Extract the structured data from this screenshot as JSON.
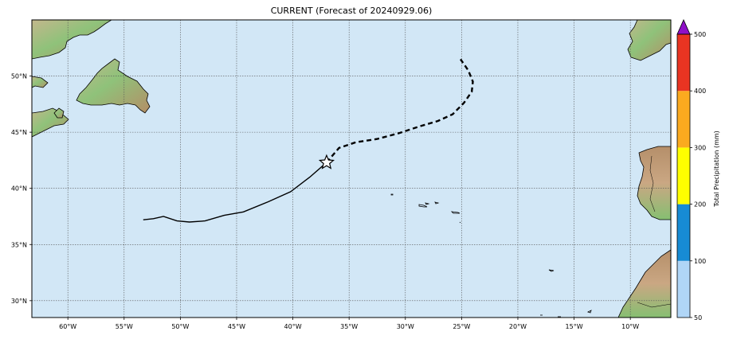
{
  "title": "CURRENT (Forecast of 20240929.06)",
  "map": {
    "lon_range": [
      -63.2,
      -6.4
    ],
    "lat_range": [
      28.5,
      55.0
    ],
    "ocean_color": "#d2e7f6",
    "grid_lon": [
      -60,
      -55,
      -50,
      -45,
      -40,
      -35,
      -30,
      -25,
      -20,
      -15,
      -10
    ],
    "grid_lat": [
      30,
      35,
      40,
      45,
      50
    ],
    "lon_labels": [
      "60°W",
      "55°W",
      "50°W",
      "45°W",
      "40°W",
      "35°W",
      "30°W",
      "25°W",
      "20°W",
      "15°W",
      "10°W"
    ],
    "lat_labels": [
      "30°N",
      "35°N",
      "40°N",
      "45°N",
      "50°N"
    ]
  },
  "track": {
    "past": [
      [
        -53.3,
        37.2
      ],
      [
        -52.4,
        37.3
      ],
      [
        -51.5,
        37.5
      ],
      [
        -50.3,
        37.1
      ],
      [
        -49.2,
        37.0
      ],
      [
        -47.8,
        37.1
      ],
      [
        -46.1,
        37.6
      ],
      [
        -44.4,
        37.9
      ],
      [
        -42.2,
        38.8
      ],
      [
        -40.2,
        39.7
      ],
      [
        -38.5,
        41.0
      ],
      [
        -37.0,
        42.3
      ]
    ],
    "forecast": [
      [
        -37.0,
        42.3
      ],
      [
        -35.9,
        43.6
      ],
      [
        -34.4,
        44.1
      ],
      [
        -32.5,
        44.4
      ],
      [
        -30.6,
        44.9
      ],
      [
        -28.8,
        45.5
      ],
      [
        -27.1,
        46.0
      ],
      [
        -25.8,
        46.6
      ],
      [
        -24.8,
        47.6
      ],
      [
        -24.1,
        48.6
      ],
      [
        -24.0,
        49.5
      ],
      [
        -24.4,
        50.5
      ],
      [
        -25.1,
        51.5
      ]
    ],
    "current_position": [
      -37.0,
      42.3
    ]
  },
  "colorbar": {
    "label": "Total Precipitation (mm)",
    "ticks": [
      "50",
      "100",
      "200",
      "300",
      "400",
      "500"
    ],
    "bins": [
      {
        "from": 50,
        "to": 100,
        "color": "#b0d6f7"
      },
      {
        "from": 100,
        "to": 200,
        "color": "#178bd4"
      },
      {
        "from": 200,
        "to": 300,
        "color": "#ffff00"
      },
      {
        "from": 300,
        "to": 400,
        "color": "#fbaa1f"
      },
      {
        "from": 400,
        "to": 500,
        "color": "#e93422"
      }
    ],
    "extend_color": "#8f10c7"
  },
  "colors": {
    "land_low": "#78bd6a",
    "land_mid": "#c9b98e",
    "land_high": "#b08a62"
  }
}
